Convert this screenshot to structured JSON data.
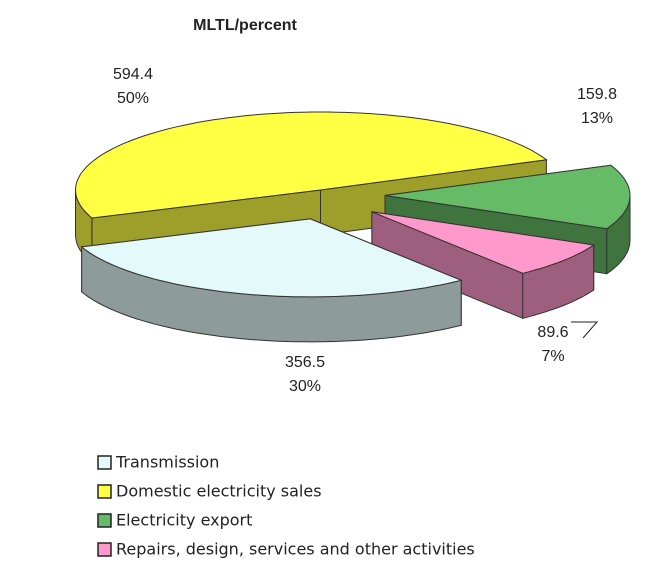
{
  "chart_data": {
    "type": "pie3d",
    "title": "MLTL/percent",
    "categories": [
      "Transmission",
      "Domestic electricity sales",
      "Electricity export",
      "Repairs, design, services and other activities"
    ],
    "values": [
      356.5,
      594.4,
      159.8,
      89.6
    ],
    "percent_labels": [
      "30%",
      "50%",
      "13%",
      "7%"
    ],
    "colors": [
      "#e4fafa",
      "#ffff44",
      "#66bb66",
      "#ff99cc"
    ],
    "legend": "bottom"
  }
}
